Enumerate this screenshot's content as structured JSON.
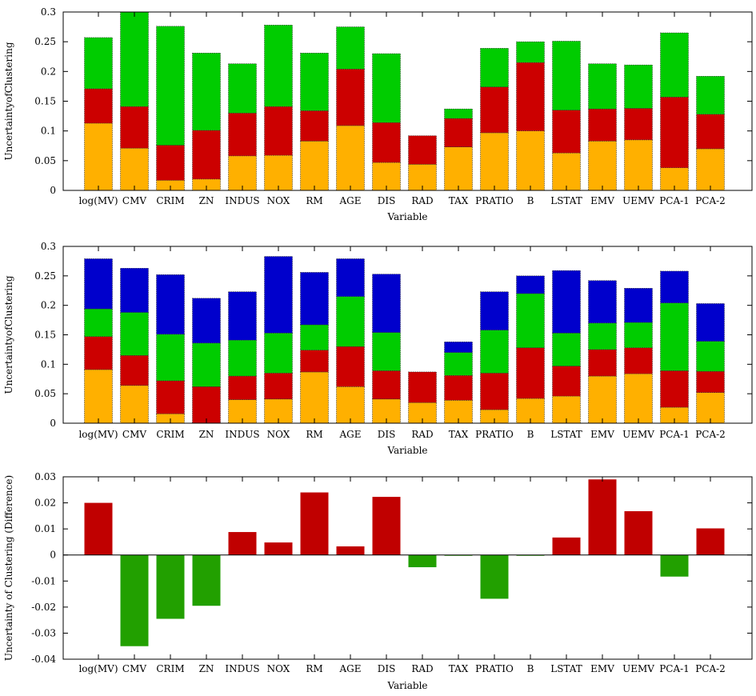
{
  "colors": {
    "segment": [
      "#ffb000",
      "#cc0000",
      "#00cc00",
      "#0000cc"
    ],
    "positive": "#c00000",
    "negative": "#22a000"
  },
  "chart_data": [
    {
      "type": "bar",
      "stacked": true,
      "title": "",
      "xlabel": "Variable",
      "ylabel": "UncertaintyofClustering",
      "ylim": [
        0,
        0.3
      ],
      "yticks": [
        0,
        0.05,
        0.1,
        0.15,
        0.2,
        0.25,
        0.3
      ],
      "ytick_labels": [
        "0",
        "0.05",
        "0.1",
        "0.15",
        "0.2",
        "0.25",
        "0.3"
      ],
      "grid": false,
      "legend": "none",
      "categories": [
        "log(MV)",
        "CMV",
        "CRIM",
        "ZN",
        "INDUS",
        "NOX",
        "RM",
        "AGE",
        "DIS",
        "RAD",
        "TAX",
        "PRATIO",
        "B",
        "LSTAT",
        "EMV",
        "UEMV",
        "PCA-1",
        "PCA-2"
      ],
      "series": [
        {
          "values": [
            0.113,
            0.071,
            0.017,
            0.019,
            0.058,
            0.059,
            0.083,
            0.109,
            0.047,
            0.044,
            0.073,
            0.097,
            0.1,
            0.063,
            0.083,
            0.085,
            0.038,
            0.07
          ]
        },
        {
          "values": [
            0.058,
            0.07,
            0.059,
            0.082,
            0.072,
            0.082,
            0.051,
            0.095,
            0.067,
            0.048,
            0.048,
            0.077,
            0.115,
            0.072,
            0.054,
            0.053,
            0.119,
            0.058
          ]
        },
        {
          "values": [
            0.086,
            0.159,
            0.2,
            0.13,
            0.083,
            0.137,
            0.097,
            0.071,
            0.116,
            0.0,
            0.016,
            0.065,
            0.035,
            0.116,
            0.076,
            0.073,
            0.108,
            0.064
          ]
        }
      ]
    },
    {
      "type": "bar",
      "stacked": true,
      "title": "",
      "xlabel": "Variable",
      "ylabel": "UncertaintyofClustering",
      "ylim": [
        0,
        0.3
      ],
      "yticks": [
        0,
        0.05,
        0.1,
        0.15,
        0.2,
        0.25,
        0.3
      ],
      "ytick_labels": [
        "0",
        "0.05",
        "0.1",
        "0.15",
        "0.2",
        "0.25",
        "0.3"
      ],
      "grid": false,
      "legend": "none",
      "categories": [
        "log(MV)",
        "CMV",
        "CRIM",
        "ZN",
        "INDUS",
        "NOX",
        "RM",
        "AGE",
        "DIS",
        "RAD",
        "TAX",
        "PRATIO",
        "B",
        "LSTAT",
        "EMV",
        "UEMV",
        "PCA-1",
        "PCA-2"
      ],
      "series": [
        {
          "values": [
            0.091,
            0.064,
            0.016,
            0.0,
            0.04,
            0.041,
            0.087,
            0.062,
            0.041,
            0.035,
            0.039,
            0.023,
            0.042,
            0.046,
            0.08,
            0.084,
            0.027,
            0.052
          ]
        },
        {
          "values": [
            0.056,
            0.051,
            0.056,
            0.062,
            0.04,
            0.044,
            0.037,
            0.068,
            0.048,
            0.052,
            0.042,
            0.062,
            0.086,
            0.051,
            0.045,
            0.044,
            0.062,
            0.036
          ]
        },
        {
          "values": [
            0.047,
            0.073,
            0.079,
            0.074,
            0.061,
            0.068,
            0.043,
            0.085,
            0.065,
            0.0,
            0.039,
            0.073,
            0.092,
            0.056,
            0.045,
            0.043,
            0.115,
            0.051
          ]
        },
        {
          "values": [
            0.085,
            0.075,
            0.101,
            0.076,
            0.082,
            0.13,
            0.089,
            0.064,
            0.099,
            0.0,
            0.018,
            0.065,
            0.03,
            0.106,
            0.072,
            0.058,
            0.054,
            0.064
          ]
        }
      ]
    },
    {
      "type": "bar",
      "stacked": false,
      "title": "",
      "xlabel": "Variable",
      "ylabel": "Uncertainty of Clustering (Difference)",
      "ylim": [
        -0.04,
        0.03
      ],
      "yticks": [
        -0.04,
        -0.03,
        -0.02,
        -0.01,
        0,
        0.01,
        0.02,
        0.03
      ],
      "ytick_labels": [
        "-0.04",
        "-0.03",
        "-0.02",
        "-0.01",
        "0",
        "0.01",
        "0.02",
        "0.03"
      ],
      "grid": false,
      "legend": "none",
      "categories": [
        "log(MV)",
        "CMV",
        "CRIM",
        "ZN",
        "INDUS",
        "NOX",
        "RM",
        "AGE",
        "DIS",
        "RAD",
        "TAX",
        "PRATIO",
        "B",
        "LSTAT",
        "EMV",
        "UEMV",
        "PCA-1",
        "PCA-2"
      ],
      "values": [
        0.02,
        -0.035,
        -0.0245,
        -0.0195,
        0.0088,
        0.0048,
        0.024,
        0.0033,
        0.0223,
        -0.0047,
        -0.0003,
        -0.0168,
        -0.0003,
        0.0067,
        0.029,
        0.0168,
        -0.0083,
        0.0102
      ]
    }
  ]
}
